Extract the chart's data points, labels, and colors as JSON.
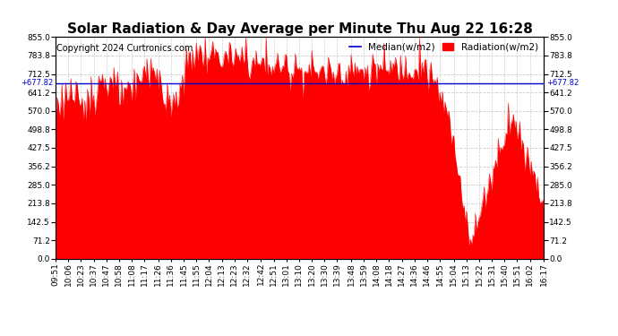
{
  "title": "Solar Radiation & Day Average per Minute Thu Aug 22 16:28",
  "copyright": "Copyright 2024 Curtronics.com",
  "median_label": "Median(w/m2)",
  "radiation_label": "Radiation(w/m2)",
  "median_value": 677.82,
  "y_max": 855.0,
  "y_min": 0.0,
  "y_ticks": [
    0.0,
    71.2,
    142.5,
    213.8,
    285.0,
    356.2,
    427.5,
    498.8,
    570.0,
    641.2,
    712.5,
    783.8,
    855.0
  ],
  "bar_color": "#ff0000",
  "median_color": "#0000cc",
  "background_color": "#ffffff",
  "grid_color": "#cccccc",
  "title_fontsize": 11,
  "copyright_fontsize": 7,
  "legend_fontsize": 7.5,
  "tick_fontsize": 6.5,
  "x_labels": [
    "09:51",
    "10:06",
    "10:23",
    "10:37",
    "10:47",
    "10:58",
    "11:08",
    "11:17",
    "11:26",
    "11:36",
    "11:45",
    "11:55",
    "12:04",
    "12:13",
    "12:23",
    "12:32",
    "12:42",
    "12:51",
    "13:01",
    "13:10",
    "13:20",
    "13:30",
    "13:39",
    "13:48",
    "13:59",
    "14:08",
    "14:18",
    "14:27",
    "14:36",
    "14:46",
    "14:55",
    "15:04",
    "15:13",
    "15:22",
    "15:31",
    "15:40",
    "15:51",
    "16:02",
    "16:17"
  ]
}
